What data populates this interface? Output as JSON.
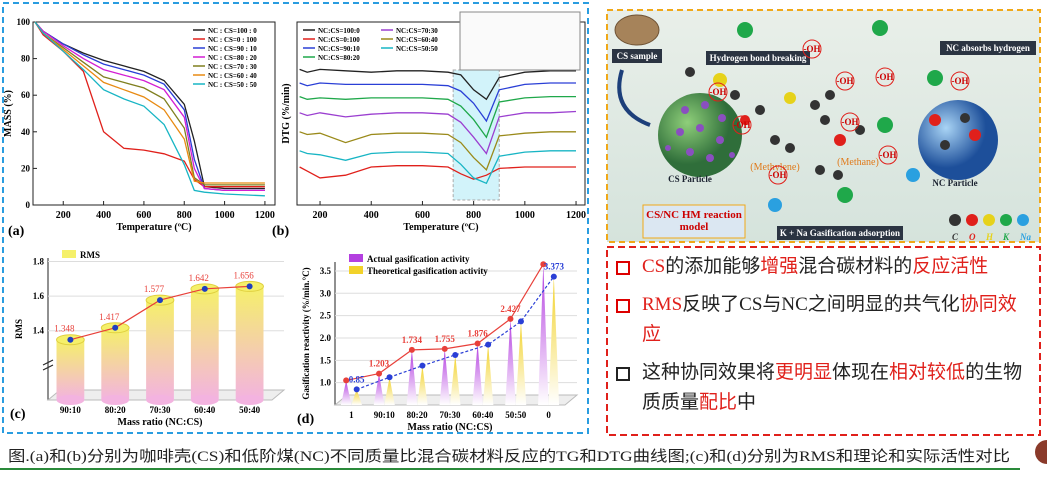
{
  "chart_data": [
    {
      "type": "line",
      "label": "(a)",
      "x_label": "Temperature (ºC)",
      "y_label": "MASS (%)",
      "x": [
        60,
        100,
        200,
        300,
        400,
        500,
        600,
        700,
        800,
        850,
        900,
        1000,
        1200
      ],
      "xlim": [
        50,
        1250
      ],
      "xticks": [
        200,
        400,
        600,
        800,
        1000,
        1200
      ],
      "ylim": [
        0,
        100
      ],
      "yticks": [
        0,
        20,
        40,
        60,
        80,
        100
      ],
      "legend": "upper right",
      "legend_columns": 1,
      "series": [
        {
          "name": "NC : CS=100 : 0",
          "color": "#222222",
          "values": [
            100,
            95,
            88,
            83,
            79,
            76,
            73,
            68,
            55,
            35,
            10,
            9,
            9
          ]
        },
        {
          "name": "NC : CS=0 : 100",
          "color": "#e0201b",
          "values": [
            100,
            93,
            84,
            73,
            40,
            31,
            30,
            28,
            24,
            14,
            10,
            10,
            10
          ]
        },
        {
          "name": "NC : CS=90 : 10",
          "color": "#2a3fd6",
          "values": [
            100,
            95,
            88,
            82,
            77,
            74,
            71,
            66,
            52,
            25,
            9,
            8,
            8
          ]
        },
        {
          "name": "NC : CS=80 : 20",
          "color": "#d31fd3",
          "values": [
            100,
            95,
            87,
            80,
            74,
            71,
            68,
            63,
            48,
            20,
            9,
            8,
            8
          ]
        },
        {
          "name": "NC : CS=70 : 30",
          "color": "#7f7f1f",
          "values": [
            100,
            94,
            86,
            78,
            70,
            67,
            64,
            58,
            42,
            15,
            11,
            11,
            11
          ]
        },
        {
          "name": "NC : CS=60 : 40",
          "color": "#e88a12",
          "values": [
            100,
            94,
            85,
            76,
            67,
            63,
            59,
            52,
            36,
            13,
            12,
            12,
            12
          ]
        },
        {
          "name": "NC : CS=50 : 50",
          "color": "#18b5c4",
          "values": [
            100,
            94,
            84,
            74,
            63,
            58,
            54,
            44,
            22,
            8,
            7,
            6,
            5
          ]
        }
      ]
    },
    {
      "type": "line",
      "label": "(b)",
      "x_label": "Temperature (ºC)",
      "y_label": "DTG (%/min)",
      "x": [
        120,
        150,
        200,
        300,
        400,
        500,
        600,
        700,
        750,
        800,
        850,
        900,
        1000,
        1100,
        1200
      ],
      "xlim": [
        110,
        1235
      ],
      "xticks": [
        200,
        400,
        600,
        800,
        1000,
        1200
      ],
      "ylim": [
        -1,
        12.5
      ],
      "legend": "upper left",
      "legend_columns": 2,
      "series": [
        {
          "name": "NC:CS=100:0",
          "color": "#222222",
          "values": [
            9,
            8.8,
            9,
            8.9,
            8.8,
            8.9,
            8.9,
            8.8,
            8.6,
            7.5,
            6.8,
            8.4,
            8.8,
            8.9,
            8.9
          ]
        },
        {
          "name": "NC:CS=0:100",
          "color": "#e0201b",
          "values": [
            1.8,
            1.5,
            1.0,
            1.2,
            1.8,
            1.9,
            1.9,
            1.8,
            1.3,
            0.9,
            1.2,
            1.7,
            1.8,
            1.8,
            1.8
          ]
        },
        {
          "name": "NC:CS=90:10",
          "color": "#2a3fd6",
          "values": [
            8,
            7.8,
            8,
            7.9,
            7.9,
            7.9,
            7.9,
            7.8,
            7.4,
            6.5,
            5.2,
            7.5,
            7.9,
            8,
            8
          ]
        },
        {
          "name": "NC:CS=80:20",
          "color": "#1fa84a",
          "values": [
            7,
            6.8,
            6.9,
            6.8,
            6.9,
            6.9,
            6.9,
            6.8,
            6.3,
            5.3,
            4.0,
            6.6,
            6.9,
            7,
            7
          ]
        },
        {
          "name": "NC:CS=70:30",
          "color": "#9b3fd0",
          "values": [
            5.8,
            5.6,
            5.8,
            5.5,
            5.7,
            5.8,
            5.8,
            5.7,
            5.1,
            4.0,
            2.8,
            5.5,
            5.8,
            5.8,
            5.9
          ]
        },
        {
          "name": "NC:CS=60:40",
          "color": "#9a8a1a",
          "values": [
            4.4,
            4.2,
            4.3,
            3.6,
            4.2,
            4.3,
            4.3,
            4.2,
            3.6,
            2.5,
            1.6,
            4.1,
            4.3,
            4.4,
            4.4
          ]
        },
        {
          "name": "NC:CS=50:50",
          "color": "#18b5c4",
          "values": [
            3,
            2.8,
            2.7,
            2.3,
            2.8,
            2.9,
            2.9,
            2.8,
            2.0,
            1.0,
            0.6,
            2.6,
            2.9,
            3,
            3
          ]
        }
      ]
    },
    {
      "type": "bar",
      "label": "(c)",
      "shape": "cylinder",
      "x_label": "Mass ratio (NC:CS)",
      "y_label": "RMS",
      "name": "RMS",
      "legend": "upper left",
      "categories": [
        "90:10",
        "80:20",
        "70:30",
        "60:40",
        "50:40"
      ],
      "values": [
        1.348,
        1.417,
        1.577,
        1.642,
        1.656
      ],
      "color": "#f5f06a",
      "line_color": "#e8403a",
      "marker_color": "#1f3fbf",
      "ylim": [
        1.0,
        1.82
      ],
      "yticks": [
        1.4,
        1.6,
        1.8
      ]
    },
    {
      "type": "bar",
      "label": "(d)",
      "shape": "cone",
      "x_label": "Mass ratio (NC:CS)",
      "y_label": "Gasification reactivity (%/min.°C)",
      "legend": "upper left",
      "categories": [
        "1",
        "90:10",
        "80:20",
        "70:30",
        "60:40",
        "50:50",
        "0"
      ],
      "ylim": [
        0.5,
        3.7
      ],
      "yticks": [
        {
          "value": 1,
          "label": "1.0"
        },
        1.5,
        {
          "value": 2,
          "label": "2.0"
        },
        2.5,
        {
          "value": 3,
          "label": "3.0"
        },
        3.5
      ],
      "series": [
        {
          "name": "Actual gasification activity",
          "color": "#b43fe0",
          "line_color": "#e8403a",
          "line_dash": false,
          "values": [
            1.05,
            1.203,
            1.734,
            1.755,
            1.876,
            2.427,
            3.65
          ],
          "value_labels": [
            null,
            "1.203",
            "1.734",
            "1.755",
            "1.876",
            "2.427",
            null
          ]
        },
        {
          "name": "Theoretical gasification activity",
          "color": "#f2d22a",
          "line_color": "#2a3fd6",
          "line_dash": true,
          "values": [
            0.85,
            1.12,
            1.38,
            1.62,
            1.85,
            2.37,
            3.373
          ],
          "value_labels": [
            "0.85",
            null,
            null,
            null,
            null,
            null,
            "3.373"
          ]
        }
      ]
    }
  ],
  "diagram": {
    "cs_sample": "CS sample",
    "hydrogen_bond": "Hydrogen bond breaking",
    "nc_absorbs": "NC absorbs hydrogen",
    "hydroxyl_labels": [
      "-OH",
      "-OH",
      "-OH",
      "-OH",
      "-OH",
      "-OH",
      "-OH",
      "-OH",
      "-OH"
    ],
    "methylene": "(Methylene)",
    "methane": "(Methane)",
    "cs_particle": "CS Particle",
    "nc_particle": "NC Particle",
    "model": "CS/NC HM reaction model",
    "gasification": "K + Na Gasification adsorption",
    "atoms": [
      {
        "symbol": "C",
        "color": "#333333"
      },
      {
        "symbol": "O",
        "color": "#e0201b"
      },
      {
        "symbol": "H",
        "color": "#e6d21a"
      },
      {
        "symbol": "K",
        "color": "#1fa84a"
      },
      {
        "symbol": "Na",
        "color": "#2aa0e0"
      }
    ]
  },
  "bullets": [
    {
      "segments": [
        {
          "text": "CS",
          "highlight": true
        },
        {
          "text": "的添加能够",
          "highlight": false
        },
        {
          "text": "增强",
          "highlight": true
        },
        {
          "text": "混合碳材料的",
          "highlight": false
        },
        {
          "text": "反应活性",
          "highlight": true
        }
      ]
    },
    {
      "segments": [
        {
          "text": "RMS",
          "highlight": true
        },
        {
          "text": "反映了CS与NC之间明显的共气化",
          "highlight": false
        },
        {
          "text": "协同效应",
          "highlight": true
        }
      ]
    },
    {
      "segments": [
        {
          "text": "这种协同效果将",
          "highlight": false
        },
        {
          "text": "更明显",
          "highlight": true
        },
        {
          "text": "体现在",
          "highlight": false
        },
        {
          "text": "相对较低",
          "highlight": true
        },
        {
          "text": "的生物质质量",
          "highlight": false
        },
        {
          "text": "配比",
          "highlight": true
        },
        {
          "text": "中",
          "highlight": false
        }
      ]
    }
  ],
  "caption": "图.(a)和(b)分别为咖啡壳(CS)和低阶煤(NC)不同质量比混合碳材料反应的TG和DTG曲线图;(c)和(d)分别为RMS和理论和实际活性对比"
}
